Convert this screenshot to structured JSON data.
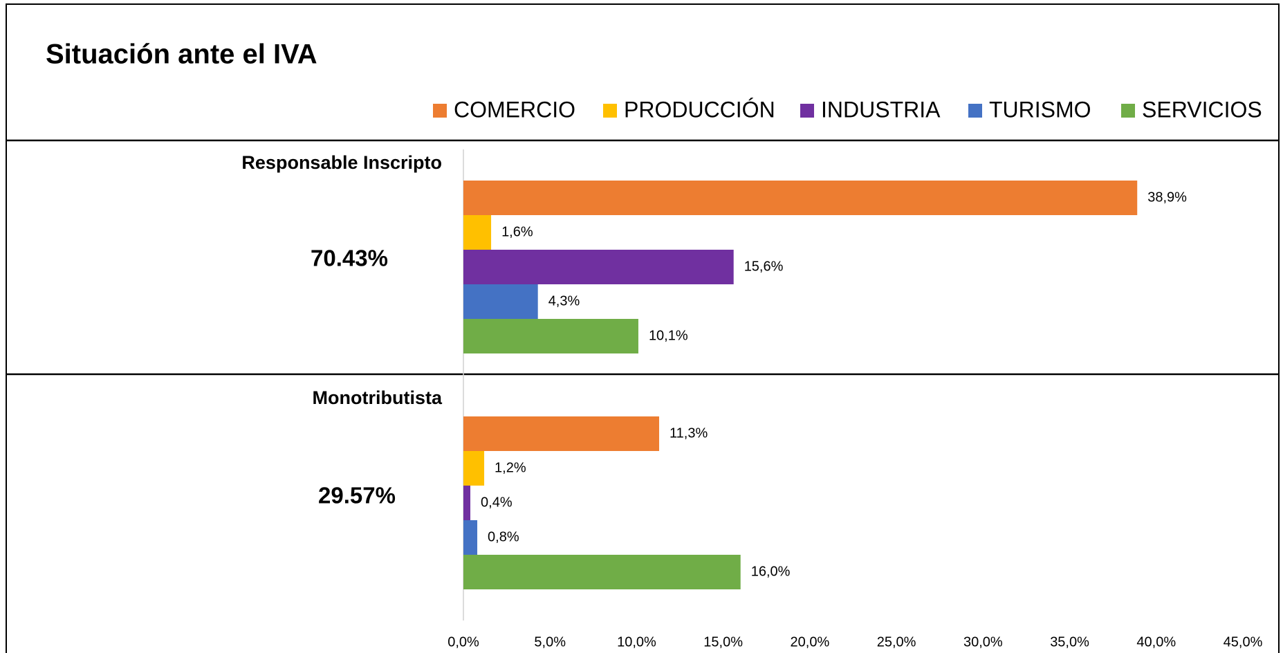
{
  "chart_data": {
    "type": "bar",
    "orientation": "horizontal",
    "title": "Situación ante el IVA",
    "categories": [
      "Responsable Inscripto",
      "Monotributista"
    ],
    "annotations": [
      "70.43%",
      "29.57%"
    ],
    "series": [
      {
        "name": "COMERCIO",
        "color": "#ed7d31",
        "values": [
          38.9,
          11.3
        ],
        "value_labels": [
          "38,9%",
          "11,3%"
        ]
      },
      {
        "name": "PRODUCCIÓN",
        "color": "#ffc000",
        "values": [
          1.6,
          1.2
        ],
        "value_labels": [
          "1,6%",
          "1,2%"
        ]
      },
      {
        "name": "INDUSTRIA",
        "color": "#7030a0",
        "values": [
          15.6,
          0.4
        ],
        "value_labels": [
          "15,6%",
          "0,4%"
        ]
      },
      {
        "name": "TURISMO",
        "color": "#4472c4",
        "values": [
          4.3,
          0.8
        ],
        "value_labels": [
          "4,3%",
          "0,8%"
        ]
      },
      {
        "name": "SERVICIOS",
        "color": "#70ad47",
        "values": [
          10.1,
          16.0
        ],
        "value_labels": [
          "10,1%",
          "16,0%"
        ]
      }
    ],
    "xlim": [
      0,
      45
    ],
    "xticks": [
      {
        "value": 0,
        "label": "0,0%"
      },
      {
        "value": 5,
        "label": "5,0%"
      },
      {
        "value": 10,
        "label": "10,0%"
      },
      {
        "value": 15,
        "label": "15,0%"
      },
      {
        "value": 20,
        "label": "20,0%"
      },
      {
        "value": 25,
        "label": "25,0%"
      },
      {
        "value": 30,
        "label": "30,0%"
      },
      {
        "value": 35,
        "label": "35,0%"
      },
      {
        "value": 40,
        "label": "40,0%"
      },
      {
        "value": 45,
        "label": "45,0%"
      }
    ],
    "legend": "top-right",
    "grid": false
  }
}
